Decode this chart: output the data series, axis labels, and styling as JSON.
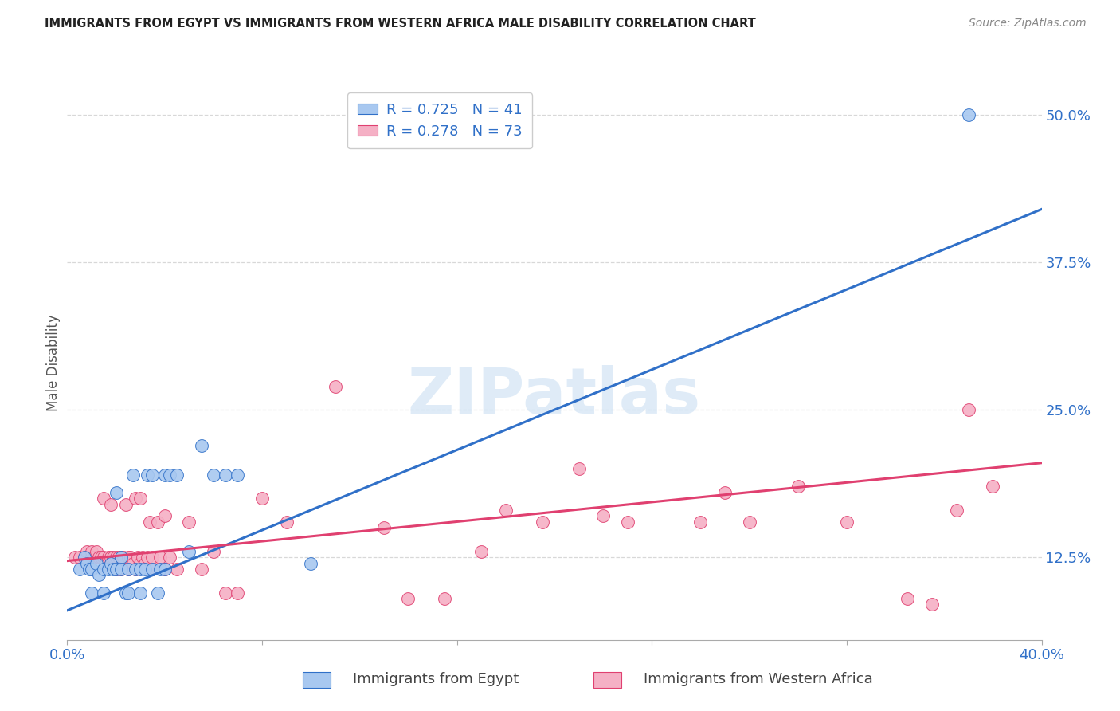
{
  "title": "IMMIGRANTS FROM EGYPT VS IMMIGRANTS FROM WESTERN AFRICA MALE DISABILITY CORRELATION CHART",
  "source": "Source: ZipAtlas.com",
  "xlabel_blue": "Immigrants from Egypt",
  "xlabel_pink": "Immigrants from Western Africa",
  "ylabel": "Male Disability",
  "xlim": [
    0.0,
    0.4
  ],
  "ylim": [
    0.055,
    0.525
  ],
  "yticks_right": [
    0.125,
    0.25,
    0.375,
    0.5
  ],
  "ytick_right_labels": [
    "12.5%",
    "25.0%",
    "37.5%",
    "50.0%"
  ],
  "blue_color": "#a8c8f0",
  "pink_color": "#f5b0c5",
  "blue_line_color": "#3070c8",
  "pink_line_color": "#e04070",
  "legend_R_blue": "R = 0.725",
  "legend_N_blue": "N = 41",
  "legend_R_pink": "R = 0.278",
  "legend_N_pink": "N = 73",
  "watermark": "ZIPatlas",
  "blue_trend_x0": 0.0,
  "blue_trend_y0": 0.08,
  "blue_trend_x1": 0.4,
  "blue_trend_y1": 0.42,
  "pink_trend_x0": 0.0,
  "pink_trend_y0": 0.122,
  "pink_trend_x1": 0.4,
  "pink_trend_y1": 0.205,
  "blue_scatter_x": [
    0.005,
    0.007,
    0.008,
    0.009,
    0.01,
    0.01,
    0.012,
    0.013,
    0.015,
    0.015,
    0.017,
    0.018,
    0.019,
    0.02,
    0.02,
    0.022,
    0.022,
    0.024,
    0.025,
    0.025,
    0.027,
    0.028,
    0.03,
    0.03,
    0.032,
    0.033,
    0.035,
    0.035,
    0.037,
    0.038,
    0.04,
    0.04,
    0.042,
    0.045,
    0.05,
    0.055,
    0.06,
    0.065,
    0.07,
    0.1,
    0.37
  ],
  "blue_scatter_y": [
    0.115,
    0.125,
    0.12,
    0.115,
    0.115,
    0.095,
    0.12,
    0.11,
    0.115,
    0.095,
    0.115,
    0.12,
    0.115,
    0.18,
    0.115,
    0.125,
    0.115,
    0.095,
    0.115,
    0.095,
    0.195,
    0.115,
    0.115,
    0.095,
    0.115,
    0.195,
    0.115,
    0.195,
    0.095,
    0.115,
    0.115,
    0.195,
    0.195,
    0.195,
    0.13,
    0.22,
    0.195,
    0.195,
    0.195,
    0.12,
    0.5
  ],
  "pink_scatter_x": [
    0.003,
    0.005,
    0.007,
    0.008,
    0.009,
    0.01,
    0.01,
    0.011,
    0.012,
    0.013,
    0.014,
    0.015,
    0.015,
    0.016,
    0.017,
    0.018,
    0.018,
    0.019,
    0.02,
    0.02,
    0.021,
    0.022,
    0.022,
    0.023,
    0.024,
    0.025,
    0.025,
    0.026,
    0.027,
    0.028,
    0.028,
    0.029,
    0.03,
    0.03,
    0.031,
    0.032,
    0.033,
    0.034,
    0.035,
    0.035,
    0.037,
    0.038,
    0.04,
    0.04,
    0.042,
    0.045,
    0.05,
    0.055,
    0.06,
    0.065,
    0.07,
    0.08,
    0.09,
    0.11,
    0.13,
    0.14,
    0.155,
    0.17,
    0.18,
    0.195,
    0.21,
    0.22,
    0.23,
    0.26,
    0.27,
    0.28,
    0.3,
    0.32,
    0.345,
    0.355,
    0.365,
    0.37,
    0.38
  ],
  "pink_scatter_y": [
    0.125,
    0.125,
    0.125,
    0.13,
    0.12,
    0.125,
    0.13,
    0.125,
    0.13,
    0.125,
    0.125,
    0.125,
    0.175,
    0.12,
    0.125,
    0.17,
    0.125,
    0.125,
    0.115,
    0.125,
    0.125,
    0.115,
    0.125,
    0.125,
    0.17,
    0.115,
    0.125,
    0.125,
    0.12,
    0.115,
    0.175,
    0.125,
    0.12,
    0.175,
    0.125,
    0.12,
    0.125,
    0.155,
    0.115,
    0.125,
    0.155,
    0.125,
    0.115,
    0.16,
    0.125,
    0.115,
    0.155,
    0.115,
    0.13,
    0.095,
    0.095,
    0.175,
    0.155,
    0.27,
    0.15,
    0.09,
    0.09,
    0.13,
    0.165,
    0.155,
    0.2,
    0.16,
    0.155,
    0.155,
    0.18,
    0.155,
    0.185,
    0.155,
    0.09,
    0.085,
    0.165,
    0.25,
    0.185
  ],
  "grid_color": "#d8d8d8",
  "title_color": "#222222",
  "axis_label_color": "#555555",
  "tick_color_blue": "#3070c8",
  "tick_color_dark": "#444444",
  "background_color": "#ffffff"
}
